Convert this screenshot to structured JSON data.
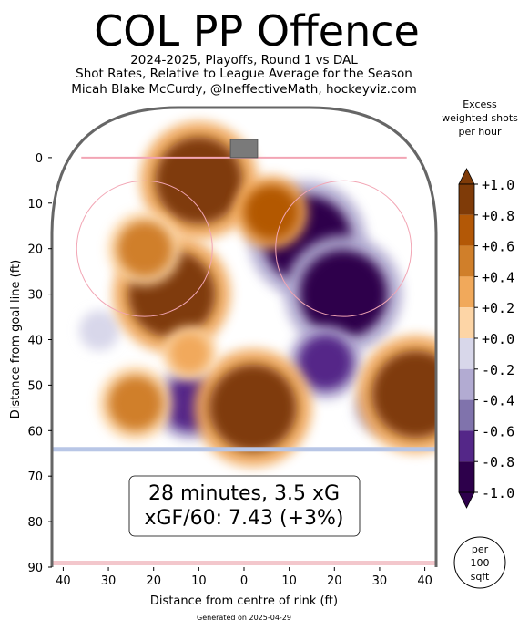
{
  "chart_data": {
    "type": "heatmap",
    "title": "COL PP Offence",
    "subtitle_lines": [
      "2024-2025, Playoffs, Round 1 vs DAL",
      "Shot Rates, Relative to League Average for the Season",
      "Micah Blake McCurdy, @IneffectiveMath, hockeyviz.com"
    ],
    "xlabel": "Distance from centre of rink (ft)",
    "ylabel": "Distance from goal line (ft)",
    "x_ticks": [
      "40",
      "30",
      "20",
      "10",
      "0",
      "10",
      "20",
      "30",
      "40"
    ],
    "x_tick_values": [
      -40,
      -30,
      -20,
      -10,
      0,
      10,
      20,
      30,
      40
    ],
    "y_ticks": [
      "0",
      "10",
      "20",
      "30",
      "40",
      "50",
      "60",
      "70",
      "80",
      "90"
    ],
    "y_tick_values": [
      0,
      10,
      20,
      30,
      40,
      50,
      60,
      70,
      80,
      90
    ],
    "xlim": [
      -42.5,
      42.5
    ],
    "ylim": [
      90,
      -11
    ],
    "colorbar": {
      "title_lines": [
        "Excess",
        "weighted shots",
        "per hour"
      ],
      "tick_labels": [
        "+1.0",
        "+0.8",
        "+0.6",
        "+0.4",
        "+0.2",
        "+0.0",
        "-0.2",
        "-0.4",
        "-0.6",
        "-0.8",
        "-1.0"
      ],
      "tick_values": [
        1.0,
        0.8,
        0.6,
        0.4,
        0.2,
        0.0,
        -0.2,
        -0.4,
        -0.6,
        -0.8,
        -1.0
      ],
      "colors": [
        "#7f3b08",
        "#b35806",
        "#d07f2a",
        "#f1a95b",
        "#fdd5a6",
        "#ffffff",
        "#d8d7ea",
        "#b2abd2",
        "#8073ac",
        "#542788",
        "#2d004b"
      ]
    },
    "hot_regions": [
      {
        "x": -10,
        "y": 5,
        "value": 1.0
      },
      {
        "x": -16,
        "y": 30,
        "value": 1.0
      },
      {
        "x": -22,
        "y": 20,
        "value": 0.6
      },
      {
        "x": 2,
        "y": 55,
        "value": 1.0
      },
      {
        "x": -24,
        "y": 54,
        "value": 0.6
      },
      {
        "x": 38,
        "y": 52,
        "value": 1.0
      },
      {
        "x": 6,
        "y": 12,
        "value": 0.8
      },
      {
        "x": -12,
        "y": 43,
        "value": 0.4
      }
    ],
    "cold_regions": [
      {
        "x": 14,
        "y": 18,
        "value": -1.0
      },
      {
        "x": 22,
        "y": 30,
        "value": -1.0
      },
      {
        "x": 18,
        "y": 45,
        "value": -0.8
      },
      {
        "x": -12,
        "y": 54,
        "value": -0.8
      },
      {
        "x": 30,
        "y": 55,
        "value": -0.4
      },
      {
        "x": -32,
        "y": 38,
        "value": -0.2
      }
    ],
    "summary_lines": [
      "28 minutes, 3.5 xG",
      "xGF/60: 7.43 (+3%)"
    ],
    "scale_note_lines": [
      "per",
      "100",
      "sqft"
    ],
    "footer": "Generated on 2025-04-29"
  }
}
